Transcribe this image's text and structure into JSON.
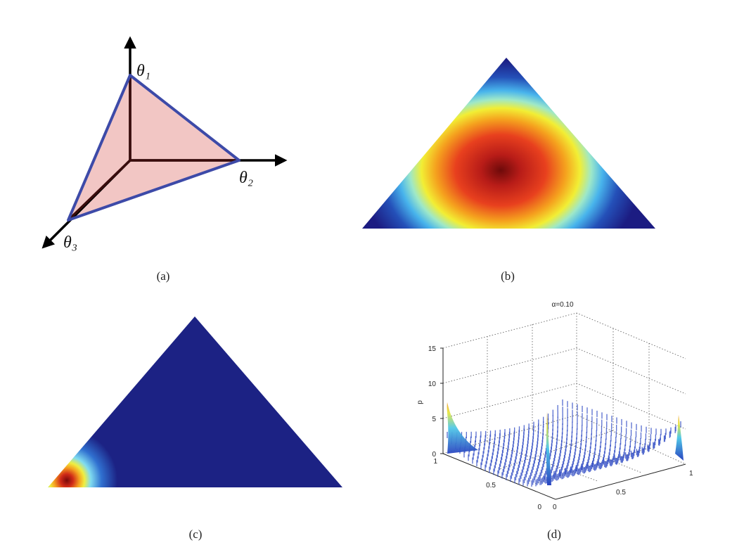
{
  "panels": [
    {
      "caption": "(a)",
      "labels": [
        "θ₁",
        "θ₂",
        "θ₃"
      ]
    },
    {
      "caption": "(b)"
    },
    {
      "caption": "(c)"
    },
    {
      "caption": "(d)",
      "title": "α=0.10",
      "z_label": "p",
      "z_ticks": [
        15,
        10,
        5,
        0
      ],
      "left_ticks": [
        1,
        0.5,
        0
      ],
      "right_ticks": [
        0,
        0.5,
        1
      ]
    }
  ]
}
